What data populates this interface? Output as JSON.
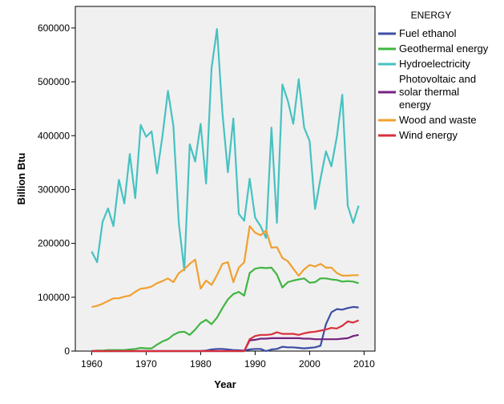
{
  "chart_data": {
    "type": "line",
    "xlabel": "Year",
    "ylabel": "Billion Btu",
    "xlim": [
      1957,
      2012
    ],
    "ylim": [
      0,
      640000
    ],
    "xticks": [
      1960,
      1970,
      1980,
      1990,
      2000,
      2010
    ],
    "yticks": [
      0,
      100000,
      200000,
      300000,
      400000,
      500000,
      600000
    ],
    "grid": false,
    "legend_title": "ENERGY",
    "legend_position": "right",
    "x": [
      1960,
      1961,
      1962,
      1963,
      1964,
      1965,
      1966,
      1967,
      1968,
      1969,
      1970,
      1971,
      1972,
      1973,
      1974,
      1975,
      1976,
      1977,
      1978,
      1979,
      1980,
      1981,
      1982,
      1983,
      1984,
      1985,
      1986,
      1987,
      1988,
      1989,
      1990,
      1991,
      1992,
      1993,
      1994,
      1995,
      1996,
      1997,
      1998,
      1999,
      2000,
      2001,
      2002,
      2003,
      2004,
      2005,
      2006,
      2007,
      2008,
      2009
    ],
    "series": [
      {
        "name": "Fuel ethanol",
        "color": "#3d4ea6",
        "legend_lines": [
          "Fuel ethanol"
        ],
        "values": [
          0,
          0,
          0,
          0,
          0,
          0,
          0,
          0,
          0,
          0,
          0,
          0,
          0,
          0,
          0,
          0,
          0,
          0,
          0,
          0,
          0,
          1000,
          3000,
          4000,
          4000,
          3000,
          2000,
          1500,
          1000,
          3000,
          4000,
          4000,
          0,
          3000,
          4000,
          8000,
          7000,
          7000,
          6000,
          5000,
          6000,
          7000,
          10000,
          50000,
          72000,
          78000,
          77000,
          80000,
          82000,
          81000
        ]
      },
      {
        "name": "Geothermal energy",
        "color": "#41b541",
        "legend_lines": [
          "Geothermal energy"
        ],
        "values": [
          0,
          1000,
          1000,
          2000,
          2000,
          2000,
          2000,
          3000,
          4000,
          6000,
          5000,
          5000,
          12000,
          18000,
          22000,
          30000,
          35000,
          36000,
          30000,
          40000,
          52000,
          58000,
          50000,
          62000,
          80000,
          96000,
          106000,
          110000,
          103000,
          145000,
          153000,
          155000,
          154000,
          155000,
          142000,
          118000,
          128000,
          131000,
          133000,
          135000,
          127000,
          128000,
          135000,
          135000,
          133000,
          132000,
          129000,
          130000,
          129000,
          126000
        ]
      },
      {
        "name": "Hydroelectricity",
        "color": "#47c1c1",
        "legend_lines": [
          "Hydroelectricity"
        ],
        "values": [
          185000,
          165000,
          240000,
          265000,
          232000,
          318000,
          274000,
          366000,
          284000,
          420000,
          398000,
          408000,
          330000,
          400000,
          483000,
          418000,
          237000,
          150000,
          384000,
          352000,
          422000,
          311000,
          525000,
          598000,
          442000,
          332000,
          432000,
          255000,
          242000,
          320000,
          248000,
          232000,
          210000,
          415000,
          238000,
          495000,
          465000,
          422000,
          505000,
          415000,
          390000,
          264000,
          320000,
          371000,
          343000,
          398000,
          476000,
          270000,
          238000,
          270000
        ]
      },
      {
        "name": "Photovoltaic and solar thermal energy",
        "color": "#74237f",
        "legend_lines": [
          "Photovoltaic and",
          "solar thermal",
          "energy"
        ],
        "values": [
          0,
          0,
          0,
          0,
          0,
          0,
          0,
          0,
          0,
          0,
          0,
          0,
          0,
          0,
          0,
          0,
          0,
          0,
          0,
          0,
          0,
          0,
          0,
          0,
          0,
          0,
          0,
          0,
          0,
          20000,
          21000,
          23000,
          23000,
          24000,
          24000,
          24000,
          24000,
          24000,
          24000,
          23000,
          23000,
          22000,
          22000,
          22000,
          22000,
          22000,
          23000,
          24000,
          28000,
          30000
        ]
      },
      {
        "name": "Wood and waste",
        "color": "#f0a030",
        "legend_lines": [
          "Wood and waste"
        ],
        "values": [
          82000,
          84000,
          88000,
          93000,
          98000,
          98000,
          101000,
          103000,
          110000,
          116000,
          117000,
          120000,
          126000,
          130000,
          135000,
          128000,
          145000,
          152000,
          162000,
          170000,
          116000,
          131000,
          123000,
          141000,
          162000,
          165000,
          128000,
          155000,
          165000,
          232000,
          220000,
          215000,
          224000,
          192000,
          193000,
          173000,
          167000,
          153000,
          140000,
          152000,
          160000,
          157000,
          162000,
          155000,
          155000,
          145000,
          140000,
          140000,
          141000,
          141000
        ]
      },
      {
        "name": "Wind energy",
        "color": "#d8303c",
        "legend_lines": [
          "Wind energy"
        ],
        "values": [
          0,
          0,
          0,
          0,
          0,
          0,
          0,
          0,
          0,
          0,
          0,
          0,
          0,
          0,
          0,
          0,
          0,
          0,
          0,
          0,
          0,
          0,
          0,
          0,
          0,
          0,
          0,
          0,
          0,
          22000,
          28000,
          30000,
          30000,
          31000,
          35000,
          32000,
          32000,
          32000,
          30000,
          33000,
          35000,
          36000,
          38000,
          40000,
          43000,
          42000,
          47000,
          55000,
          53000,
          57000
        ]
      }
    ]
  }
}
